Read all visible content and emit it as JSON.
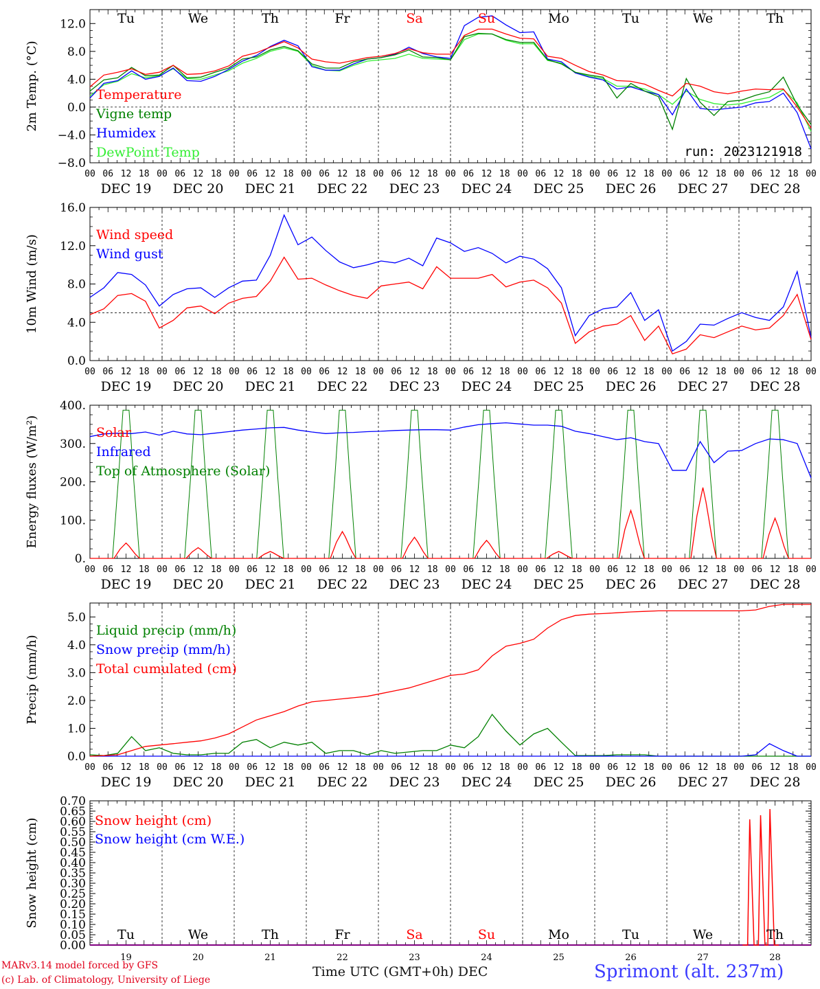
{
  "footer": {
    "credit_line1": "MARv3.14 model forced by GFS",
    "credit_line2": "(c) Lab. of Climatology, University of Liege",
    "x_axis_title": "Time UTC (GMT+0h) DEC",
    "station": "Sprimont (alt. 237m)"
  },
  "colors": {
    "red": "#ff0000",
    "green": "#008000",
    "blue": "#0000ff",
    "lightgreen": "#33ee33",
    "purple": "#800080",
    "axis": "#000000"
  },
  "chart_data": [
    {
      "type": "line",
      "ylabel": "2m Temp. (°C)",
      "ylim": [
        -8,
        14
      ],
      "yticks": [
        -8.0,
        -4.0,
        0.0,
        4.0,
        8.0,
        12.0
      ],
      "ytick_labels": [
        "−8.0",
        "−4.0",
        "0.0",
        "4.0",
        "8.0",
        "12.0"
      ],
      "reference_line": 0,
      "day_letters": [
        "Tu",
        "We",
        "Th",
        "Fr",
        "Sa",
        "Su",
        "Mo",
        "Tu",
        "We",
        "Th"
      ],
      "weekend_days": [
        4,
        5
      ],
      "hour_labels": [
        "00",
        "06",
        "12",
        "18"
      ],
      "date_labels": [
        "DEC 19",
        "DEC 20",
        "DEC 21",
        "DEC 22",
        "DEC 23",
        "DEC 24",
        "DEC 25",
        "DEC 26",
        "DEC 27",
        "DEC 28"
      ],
      "annotation": "run: 2023121918",
      "legend": "top-left",
      "x_hours_step": 6,
      "series": [
        {
          "name": "Temperature",
          "color": "red",
          "values": [
            2.9,
            4.6,
            5.0,
            5.5,
            4.7,
            5.0,
            6.0,
            4.7,
            4.8,
            5.2,
            5.9,
            7.3,
            7.8,
            8.6,
            9.4,
            8.5,
            6.9,
            6.5,
            6.3,
            6.7,
            7.1,
            7.3,
            7.7,
            8.4,
            7.8,
            7.6,
            7.6,
            10.3,
            11.2,
            11.2,
            10.5,
            9.9,
            9.8,
            7.3,
            7.0,
            6.0,
            5.1,
            4.6,
            3.8,
            3.7,
            3.3,
            2.4,
            1.6,
            3.4,
            3.0,
            2.2,
            1.9,
            2.3,
            2.6,
            2.5,
            2.6,
            0.0,
            -3.0
          ]
        },
        {
          "name": "Vigne temp",
          "color": "green",
          "values": [
            2.3,
            3.9,
            4.2,
            5.7,
            4.5,
            4.6,
            6.0,
            4.2,
            4.3,
            5.0,
            5.6,
            6.9,
            7.2,
            8.2,
            8.7,
            8.1,
            6.2,
            5.6,
            5.6,
            6.5,
            6.9,
            7.1,
            7.5,
            8.2,
            7.2,
            7.1,
            6.8,
            10.1,
            10.6,
            10.5,
            9.7,
            9.3,
            9.3,
            6.8,
            6.2,
            5.0,
            4.6,
            4.3,
            1.3,
            3.4,
            2.3,
            1.5,
            -3.2,
            4.1,
            0.7,
            -1.2,
            0.8,
            1.0,
            1.7,
            2.2,
            4.3,
            0.3,
            -2.5
          ]
        },
        {
          "name": "Humidex",
          "color": "blue",
          "values": [
            1.3,
            3.4,
            3.8,
            5.2,
            4.0,
            4.4,
            5.6,
            3.8,
            3.7,
            4.4,
            5.4,
            6.6,
            7.4,
            8.7,
            9.6,
            8.8,
            5.8,
            5.3,
            5.3,
            6.2,
            6.9,
            7.1,
            7.6,
            8.6,
            7.7,
            7.2,
            7.0,
            11.7,
            12.9,
            13.1,
            11.8,
            10.7,
            10.8,
            6.9,
            6.5,
            4.9,
            4.3,
            3.9,
            2.6,
            2.9,
            2.3,
            1.8,
            -1.1,
            2.6,
            -0.2,
            -0.4,
            -0.2,
            0.0,
            0.6,
            0.8,
            2.0,
            -0.8,
            -6.0
          ]
        },
        {
          "name": "DewPoint Temp",
          "color": "lightgreen",
          "values": [
            1.6,
            3.2,
            3.7,
            4.8,
            4.2,
            4.5,
            5.5,
            4.1,
            4.0,
            4.6,
            5.2,
            6.3,
            7.0,
            8.0,
            8.5,
            8.0,
            6.0,
            5.3,
            5.2,
            6.0,
            6.6,
            6.8,
            7.0,
            7.6,
            7.0,
            6.9,
            6.8,
            9.7,
            10.5,
            10.5,
            9.6,
            9.1,
            9.1,
            6.7,
            6.3,
            5.0,
            4.4,
            4.1,
            3.0,
            3.0,
            2.6,
            1.8,
            0.4,
            2.3,
            1.1,
            0.5,
            0.3,
            0.5,
            1.0,
            1.4,
            2.5,
            0.6,
            -3.5
          ]
        }
      ]
    },
    {
      "type": "line",
      "ylabel": "10m Wind (m/s)",
      "ylim": [
        0,
        16
      ],
      "yticks": [
        0.0,
        4.0,
        8.0,
        12.0,
        16.0
      ],
      "ytick_labels": [
        "0.0",
        "4.0",
        "8.0",
        "12.0",
        "16.0"
      ],
      "reference_line": 5,
      "hour_labels": [
        "00",
        "06",
        "12",
        "18"
      ],
      "date_labels": [
        "DEC 19",
        "DEC 20",
        "DEC 21",
        "DEC 22",
        "DEC 23",
        "DEC 24",
        "DEC 25",
        "DEC 26",
        "DEC 27",
        "DEC 28"
      ],
      "legend": "top-left",
      "x_hours_step": 6,
      "series": [
        {
          "name": "Wind speed",
          "color": "red",
          "values": [
            4.8,
            5.4,
            6.8,
            7.0,
            6.2,
            3.4,
            4.2,
            5.5,
            5.7,
            4.9,
            6.0,
            6.5,
            6.7,
            8.3,
            10.8,
            8.5,
            8.6,
            7.9,
            7.3,
            6.8,
            6.5,
            7.8,
            8.0,
            8.2,
            7.5,
            9.8,
            8.6,
            8.6,
            8.6,
            9.0,
            7.7,
            8.2,
            8.4,
            7.6,
            6.0,
            1.8,
            3.0,
            3.6,
            3.8,
            4.7,
            2.1,
            3.6,
            0.7,
            1.2,
            2.7,
            2.4,
            3.0,
            3.6,
            3.2,
            3.4,
            4.7,
            6.9,
            2.2
          ]
        },
        {
          "name": "Wind gust",
          "color": "blue",
          "values": [
            6.6,
            7.6,
            9.2,
            9.0,
            7.9,
            5.7,
            6.9,
            7.5,
            7.6,
            6.6,
            7.6,
            8.3,
            8.4,
            11.0,
            15.2,
            12.1,
            12.9,
            11.5,
            10.3,
            9.7,
            10.0,
            10.4,
            10.2,
            10.7,
            9.9,
            12.8,
            12.3,
            11.4,
            11.8,
            11.2,
            10.2,
            10.9,
            10.6,
            9.6,
            7.6,
            2.6,
            4.7,
            5.4,
            5.6,
            7.1,
            4.2,
            5.3,
            1.0,
            2.0,
            3.8,
            3.7,
            4.4,
            5.0,
            4.5,
            4.2,
            5.6,
            9.3,
            2.4
          ]
        }
      ]
    },
    {
      "type": "line",
      "ylabel": "Energy fluxes (W/m²)",
      "ylim": [
        0,
        400
      ],
      "yticks": [
        0,
        100,
        200,
        300,
        400
      ],
      "ytick_labels": [
        "0.",
        "100.",
        "200.",
        "300.",
        "400."
      ],
      "hour_labels": [
        "00",
        "06",
        "12",
        "18"
      ],
      "date_labels": [
        "DEC 19",
        "DEC 20",
        "DEC 21",
        "DEC 22",
        "DEC 23",
        "DEC 24",
        "DEC 25",
        "DEC 26",
        "DEC 27",
        "DEC 28"
      ],
      "legend": "top-left",
      "x_hours_step": 6,
      "series": [
        {
          "name": "Solar",
          "color": "red",
          "daily_peak": [
            40,
            28,
            18,
            70,
            55,
            47,
            18,
            125,
            185,
            105
          ]
        },
        {
          "name": "Infrared",
          "color": "blue",
          "values": [
            318,
            325,
            327,
            326,
            330,
            322,
            332,
            325,
            323,
            327,
            331,
            335,
            338,
            341,
            342,
            335,
            330,
            326,
            328,
            329,
            331,
            332,
            334,
            335,
            336,
            336,
            335,
            343,
            349,
            352,
            354,
            351,
            348,
            348,
            345,
            332,
            326,
            318,
            310,
            315,
            305,
            300,
            230,
            230,
            305,
            250,
            280,
            282,
            300,
            312,
            310,
            300,
            210
          ]
        },
        {
          "name": "Top of Atmosphere (Solar)",
          "color": "green",
          "daily_peak": [
            387,
            387,
            387,
            387,
            387,
            387,
            387,
            387,
            387,
            387
          ]
        }
      ]
    },
    {
      "type": "line",
      "ylabel": "Precip (mm/h)",
      "ylim": [
        0,
        5.5
      ],
      "yticks": [
        0.0,
        1.0,
        2.0,
        3.0,
        4.0,
        5.0
      ],
      "ytick_labels": [
        "0.0",
        "1.0",
        "2.0",
        "3.0",
        "4.0",
        "5.0"
      ],
      "hour_labels": [
        "00",
        "06",
        "12",
        "18"
      ],
      "date_labels": [
        "DEC 19",
        "DEC 20",
        "DEC 21",
        "DEC 22",
        "DEC 23",
        "DEC 24",
        "DEC 25",
        "DEC 26",
        "DEC 27",
        "DEC 28"
      ],
      "legend": "top-left",
      "x_hours_step": 6,
      "series": [
        {
          "name": "Liquid precip (mm/h)",
          "color": "green",
          "values": [
            0.05,
            0.02,
            0.1,
            0.7,
            0.2,
            0.3,
            0.1,
            0.05,
            0.05,
            0.1,
            0.1,
            0.5,
            0.6,
            0.3,
            0.5,
            0.4,
            0.5,
            0.1,
            0.2,
            0.2,
            0.05,
            0.2,
            0.1,
            0.15,
            0.2,
            0.2,
            0.4,
            0.3,
            0.7,
            1.5,
            0.9,
            0.4,
            0.8,
            1.0,
            0.5,
            0.02,
            0.02,
            0.02,
            0.05,
            0.05,
            0.05,
            0.0,
            0.0,
            0.0,
            0.0,
            0.0,
            0.0,
            0.0,
            0.0,
            0.0,
            0.0,
            0.0,
            0.0
          ]
        },
        {
          "name": "Snow precip (mm/h)",
          "color": "blue",
          "values": [
            0,
            0,
            0,
            0,
            0,
            0,
            0,
            0,
            0,
            0,
            0,
            0,
            0,
            0,
            0,
            0,
            0,
            0,
            0,
            0,
            0,
            0,
            0,
            0,
            0,
            0,
            0,
            0,
            0,
            0,
            0,
            0,
            0,
            0,
            0,
            0,
            0,
            0,
            0,
            0,
            0,
            0,
            0,
            0,
            0,
            0,
            0,
            0,
            0.05,
            0.45,
            0.2,
            0.0,
            0.0
          ]
        },
        {
          "name": "Total cumulated (cm)",
          "color": "red",
          "values": [
            0.0,
            0.02,
            0.05,
            0.2,
            0.35,
            0.4,
            0.45,
            0.5,
            0.55,
            0.65,
            0.8,
            1.05,
            1.3,
            1.45,
            1.6,
            1.8,
            1.95,
            2.0,
            2.05,
            2.1,
            2.15,
            2.25,
            2.35,
            2.45,
            2.6,
            2.75,
            2.9,
            2.95,
            3.1,
            3.6,
            3.95,
            4.05,
            4.2,
            4.6,
            4.9,
            5.05,
            5.1,
            5.12,
            5.15,
            5.18,
            5.2,
            5.22,
            5.22,
            5.22,
            5.22,
            5.22,
            5.22,
            5.22,
            5.25,
            5.38,
            5.45,
            5.45,
            5.45
          ]
        }
      ]
    },
    {
      "type": "line",
      "ylabel": "Snow height (cm)",
      "ylim": [
        0,
        0.7
      ],
      "yticks": [
        0.0,
        0.05,
        0.1,
        0.15,
        0.2,
        0.25,
        0.3,
        0.35,
        0.4,
        0.45,
        0.5,
        0.55,
        0.6,
        0.65,
        0.7
      ],
      "ytick_labels": [
        "0.00",
        "0.05",
        "0.10",
        "0.15",
        "0.20",
        "0.25",
        "0.30",
        "0.35",
        "0.40",
        "0.45",
        "0.50",
        "0.55",
        "0.60",
        "0.65",
        "0.70"
      ],
      "day_letters": [
        "Tu",
        "We",
        "Th",
        "Fr",
        "Sa",
        "Su",
        "Mo",
        "Tu",
        "We",
        "Th"
      ],
      "weekend_days": [
        4,
        5
      ],
      "day_numbers": [
        "19",
        "20",
        "21",
        "22",
        "23",
        "24",
        "25",
        "26",
        "27",
        "28"
      ],
      "legend": "top-left",
      "series": [
        {
          "name": "Snow height (cm)",
          "color": "red",
          "spikes": [
            [
              27.15,
              0.61
            ],
            [
              27.3,
              0.63
            ],
            [
              27.43,
              0.66
            ]
          ]
        },
        {
          "name": "Snow height (cm W.E.)",
          "color": "blue",
          "values": [
            0,
            0
          ]
        }
      ]
    }
  ]
}
